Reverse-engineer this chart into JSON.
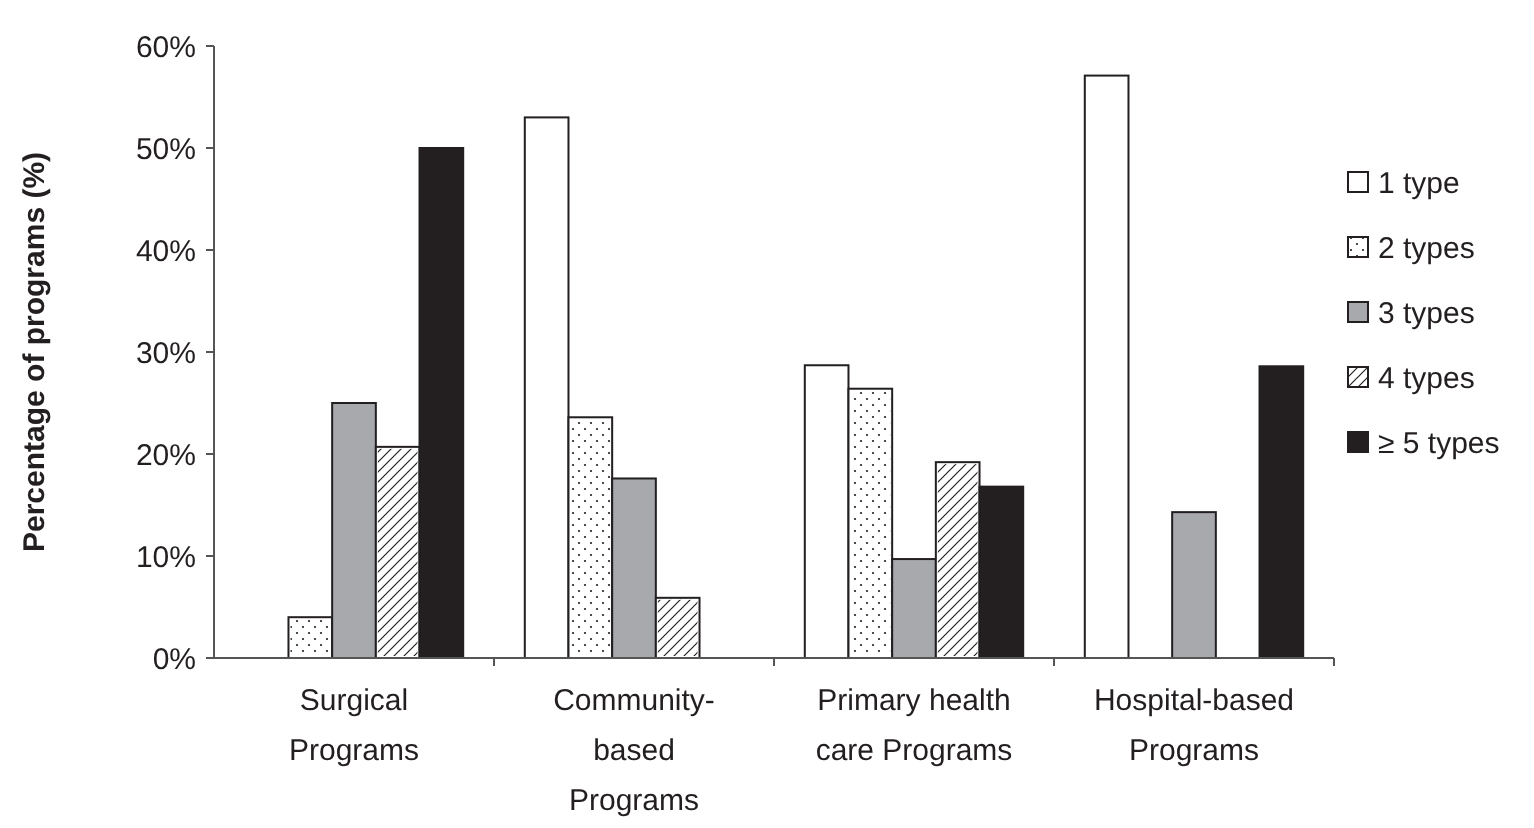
{
  "chart_data": {
    "type": "bar",
    "ylabel": "Percentage of programs (%)",
    "categories": [
      "Surgical Programs",
      "Community-based Programs",
      "Primary health care Programs",
      "Hospital-based Programs"
    ],
    "series": [
      {
        "name": "1 type",
        "color": "#ffffff",
        "values": [
          0,
          53,
          28.7,
          57.1
        ]
      },
      {
        "name": "2 types",
        "color": "#ffffff",
        "values": [
          4,
          23.6,
          26.4,
          0
        ]
      },
      {
        "name": "3 types",
        "color": "#a7a9ac",
        "values": [
          25,
          17.6,
          9.7,
          14.3
        ]
      },
      {
        "name": "4 types",
        "color": "#ffffff",
        "values": [
          20.7,
          5.9,
          19.2,
          0
        ]
      },
      {
        "name": "≥ 5 types",
        "color": "#231f20",
        "values": [
          50,
          0,
          16.8,
          28.6
        ]
      }
    ],
    "ylim": [
      0,
      60
    ],
    "yticks": [
      {
        "value": 0,
        "label": "0%"
      },
      {
        "value": 10,
        "label": "10%"
      },
      {
        "value": 20,
        "label": "20%"
      },
      {
        "value": 30,
        "label": "30%"
      },
      {
        "value": 40,
        "label": "40%"
      },
      {
        "value": 50,
        "label": "50%"
      },
      {
        "value": 60,
        "label": "60%"
      }
    ],
    "grid": false,
    "legend": "right"
  }
}
